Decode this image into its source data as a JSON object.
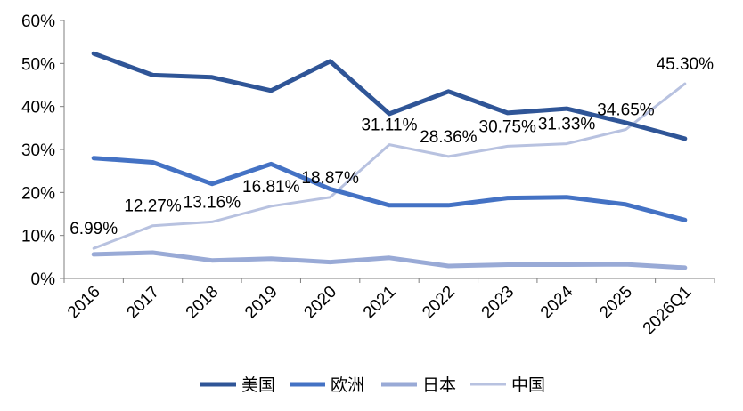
{
  "chart_data": {
    "type": "line",
    "title": "",
    "xlabel": "",
    "ylabel": "",
    "ylim": [
      0,
      60
    ],
    "y_ticks": [
      "0%",
      "10%",
      "20%",
      "30%",
      "40%",
      "50%",
      "60%"
    ],
    "categories": [
      "2016",
      "2017",
      "2018",
      "2019",
      "2020",
      "2021",
      "2022",
      "2023",
      "2024",
      "2025",
      "2026Q1"
    ],
    "series": [
      {
        "name": "美国",
        "color": "#2f5597",
        "values": [
          52.3,
          47.3,
          46.8,
          43.7,
          50.5,
          38.3,
          43.5,
          38.5,
          39.5,
          36.2,
          32.5
        ]
      },
      {
        "name": "欧洲",
        "color": "#4472c4",
        "values": [
          28.0,
          27.0,
          22.0,
          26.6,
          20.8,
          17.0,
          17.0,
          18.7,
          18.9,
          17.2,
          13.6
        ]
      },
      {
        "name": "日本",
        "color": "#99aad6",
        "values": [
          5.6,
          6.0,
          4.2,
          4.6,
          3.8,
          4.8,
          2.9,
          3.2,
          3.2,
          3.3,
          2.5
        ]
      },
      {
        "name": "中国",
        "color": "#b8c2e0",
        "values": [
          6.99,
          12.27,
          13.16,
          16.81,
          18.87,
          31.11,
          28.36,
          30.75,
          31.33,
          34.65,
          45.3
        ]
      }
    ],
    "data_labels": [
      "6.99%",
      "12.27%",
      "13.16%",
      "16.81%",
      "18.87%",
      "31.11%",
      "28.36%",
      "30.75%",
      "31.33%",
      "34.65%",
      "45.30%"
    ],
    "legend": [
      "美国",
      "欧洲",
      "日本",
      "中国"
    ],
    "legend_position": "bottom",
    "grid": false
  }
}
